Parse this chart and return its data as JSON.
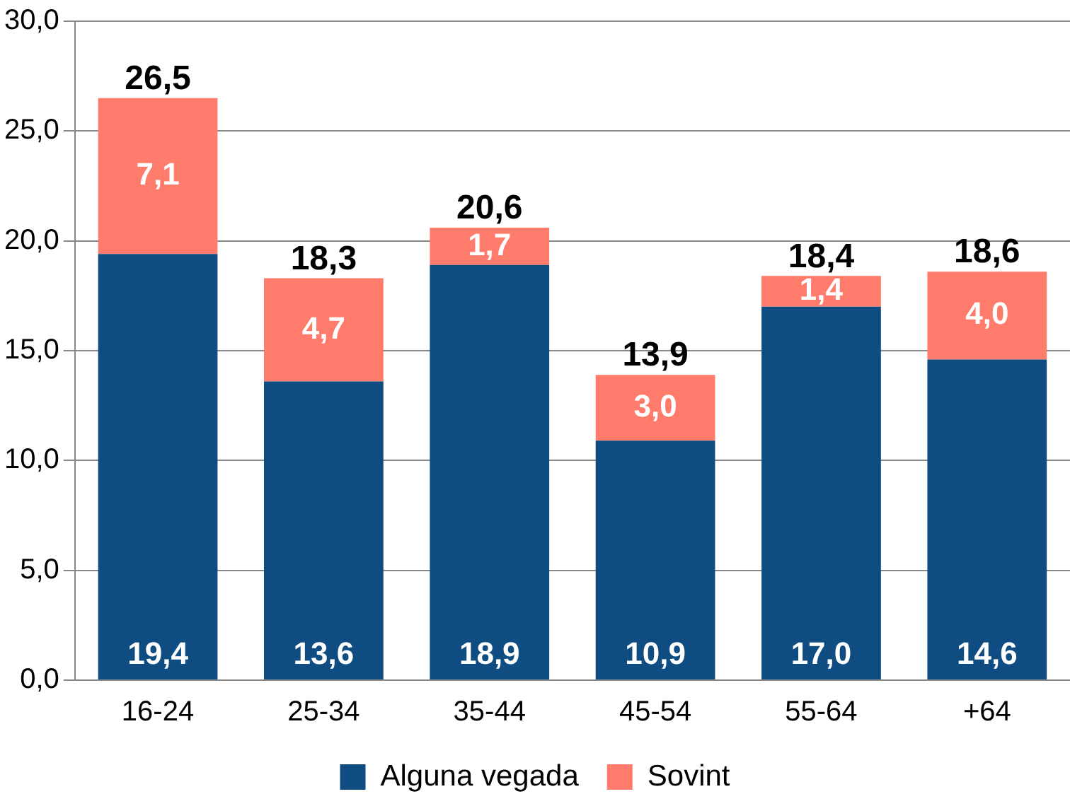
{
  "chart_data": {
    "type": "bar",
    "stacked": true,
    "categories": [
      "16-24",
      "25-34",
      "35-44",
      "45-54",
      "55-64",
      "+64"
    ],
    "series": [
      {
        "name": "Alguna vegada",
        "color": "#0f4c81",
        "values": [
          19.4,
          13.6,
          18.9,
          10.9,
          17.0,
          14.6
        ],
        "value_labels": [
          "19,4",
          "13,6",
          "18,9",
          "10,9",
          "17,0",
          "14,6"
        ]
      },
      {
        "name": "Sovint",
        "color": "#ff7b6b",
        "values": [
          7.1,
          4.7,
          1.7,
          3.0,
          1.4,
          4.0
        ],
        "value_labels": [
          "7,1",
          "4,7",
          "1,7",
          "3,0",
          "1,4",
          "4,0"
        ]
      }
    ],
    "totals": [
      "26,5",
      "18,3",
      "20,6",
      "13,9",
      "18,4",
      "18,6"
    ],
    "ylim": [
      0,
      30
    ],
    "yticks": [
      {
        "value": 0,
        "label": "0,0"
      },
      {
        "value": 5,
        "label": "5,0"
      },
      {
        "value": 10,
        "label": "10,0"
      },
      {
        "value": 15,
        "label": "15,0"
      },
      {
        "value": 20,
        "label": "20,0"
      },
      {
        "value": 25,
        "label": "25,0"
      },
      {
        "value": 30,
        "label": "30,0"
      }
    ],
    "grid": "y",
    "legend": "bottom"
  }
}
